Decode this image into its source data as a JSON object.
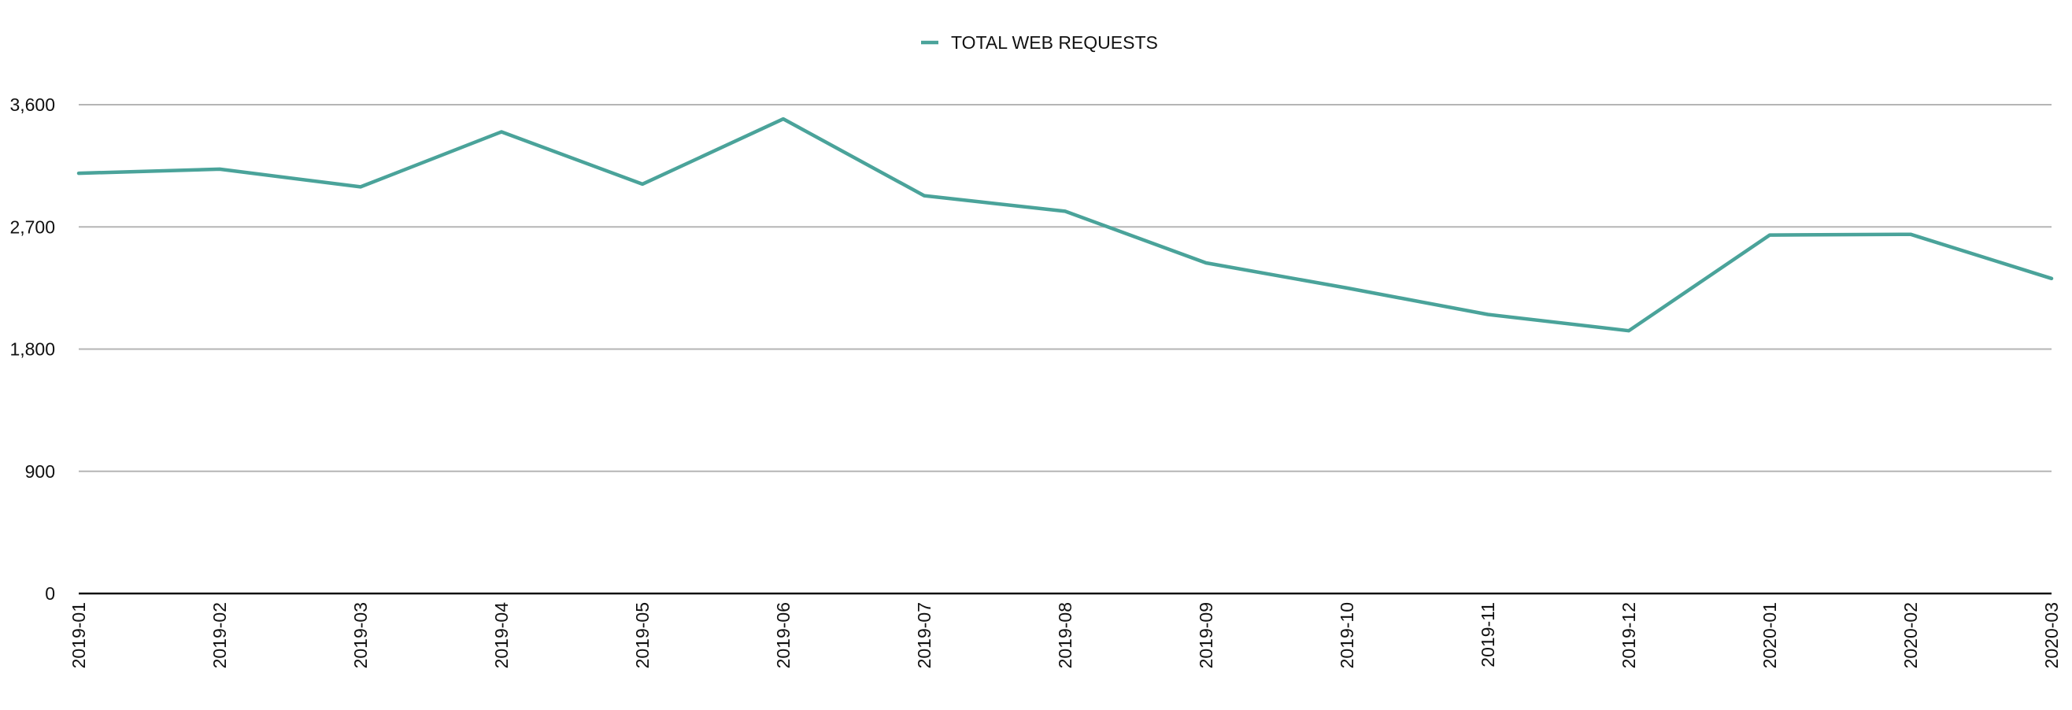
{
  "chart_data": {
    "type": "line",
    "categories": [
      "2019-01",
      "2019-02",
      "2019-03",
      "2019-04",
      "2019-05",
      "2019-06",
      "2019-07",
      "2019-08",
      "2019-09",
      "2019-10",
      "2019-11",
      "2019-12",
      "2020-01",
      "2020-02",
      "2020-03"
    ],
    "series": [
      {
        "name": "TOTAL WEB REQUESTS",
        "values": [
          3095,
          3125,
          2995,
          3400,
          3015,
          3495,
          2930,
          2815,
          2435,
          2250,
          2055,
          1935,
          2640,
          2645,
          2320
        ],
        "color": "#4aa39a"
      }
    ],
    "y_ticks": [
      0,
      900,
      1800,
      2700,
      3600
    ],
    "y_tick_labels": [
      "0",
      "900",
      "1,800",
      "2,700",
      "3,600"
    ],
    "ylim": [
      0,
      3600
    ],
    "grid": true,
    "legend_position": "top-center",
    "title": "",
    "xlabel": "",
    "ylabel": "",
    "colors": {
      "grid": "#b5b5b5",
      "axis": "#111111",
      "text": "#111111"
    }
  }
}
